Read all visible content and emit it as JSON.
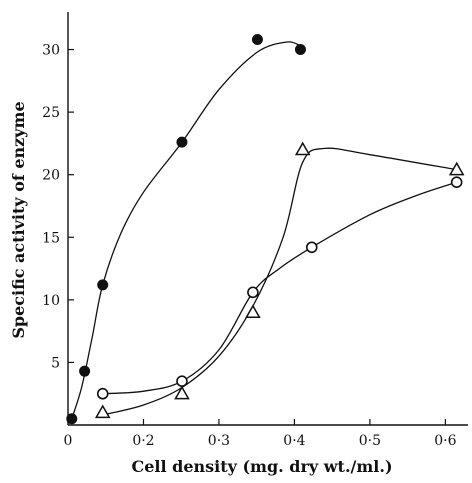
{
  "chart_data": {
    "type": "scatter",
    "title": "",
    "xlabel": "Cell density (mg. dry wt./ml.)",
    "ylabel": "Specific activity of enzyme",
    "xlim": [
      0.1,
      0.63
    ],
    "ylim": [
      0,
      33
    ],
    "grid": false,
    "x_ticks": [
      {
        "value": 0.1,
        "label": "0"
      },
      {
        "value": 0.2,
        "label": "0·2"
      },
      {
        "value": 0.3,
        "label": "0·3"
      },
      {
        "value": 0.4,
        "label": "0·4"
      },
      {
        "value": 0.5,
        "label": "0·5"
      },
      {
        "value": 0.6,
        "label": "0·6"
      }
    ],
    "y_ticks": [
      {
        "value": 5,
        "label": "5"
      },
      {
        "value": 10,
        "label": "10"
      },
      {
        "value": 15,
        "label": "15"
      },
      {
        "value": 20,
        "label": "20"
      },
      {
        "value": 25,
        "label": "25"
      },
      {
        "value": 30,
        "label": "30"
      }
    ],
    "series": [
      {
        "marker": "filled-circle",
        "x": [
          0.105,
          0.122,
          0.146,
          0.251,
          0.351,
          0.408
        ],
        "y": [
          0.5,
          4.3,
          11.2,
          22.6,
          30.8,
          30.0
        ],
        "curve": [
          [
            0.105,
            0.5
          ],
          [
            0.118,
            3.0
          ],
          [
            0.132,
            7.0
          ],
          [
            0.146,
            11.2
          ],
          [
            0.17,
            15.3
          ],
          [
            0.2,
            18.6
          ],
          [
            0.251,
            22.6
          ],
          [
            0.3,
            26.8
          ],
          [
            0.351,
            29.8
          ],
          [
            0.39,
            30.6
          ],
          [
            0.408,
            30.3
          ]
        ]
      },
      {
        "marker": "open-circle",
        "x": [
          0.146,
          0.251,
          0.345,
          0.423,
          0.615
        ],
        "y": [
          2.5,
          3.5,
          10.6,
          14.2,
          19.4
        ],
        "curve": [
          [
            0.146,
            2.5
          ],
          [
            0.2,
            2.7
          ],
          [
            0.251,
            3.5
          ],
          [
            0.3,
            6.0
          ],
          [
            0.345,
            10.6
          ],
          [
            0.38,
            12.5
          ],
          [
            0.423,
            14.2
          ],
          [
            0.5,
            16.8
          ],
          [
            0.56,
            18.3
          ],
          [
            0.615,
            19.4
          ]
        ]
      },
      {
        "marker": "open-triangle",
        "x": [
          0.146,
          0.251,
          0.345,
          0.411,
          0.615
        ],
        "y": [
          1.0,
          2.5,
          9.0,
          22.0,
          20.4
        ],
        "curve": [
          [
            0.146,
            0.8
          ],
          [
            0.2,
            1.6
          ],
          [
            0.251,
            3.0
          ],
          [
            0.3,
            5.5
          ],
          [
            0.345,
            9.5
          ],
          [
            0.385,
            15.0
          ],
          [
            0.411,
            21.0
          ],
          [
            0.44,
            22.1
          ],
          [
            0.5,
            21.6
          ],
          [
            0.615,
            20.4
          ]
        ]
      }
    ]
  }
}
